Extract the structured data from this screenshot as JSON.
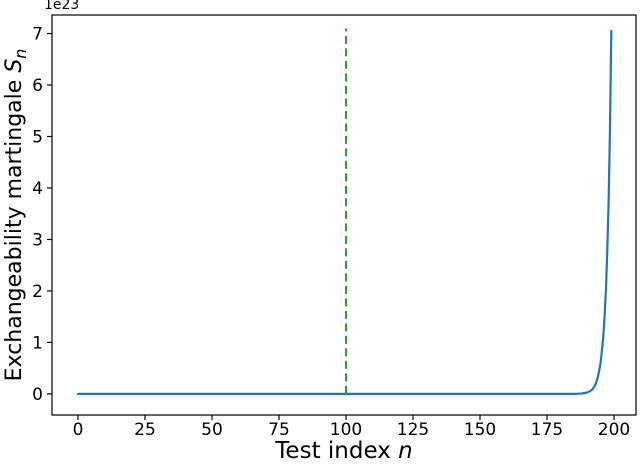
{
  "figure": {
    "background": "#ffffff",
    "offset_text": "1e23",
    "xlabel_prefix": "Test index ",
    "xlabel_var": "n",
    "ylabel_prefix": "Exchangeability martingale ",
    "ylabel_var": "S",
    "ylabel_sub": "n"
  },
  "chart_data": {
    "type": "line",
    "title": "",
    "xlabel": "Test index n",
    "ylabel": "Exchangeability martingale S_n",
    "y_offset_text": "1e23",
    "y_unit_multiplier": 1e+23,
    "xlim": [
      -9.7,
      208.2
    ],
    "ylim": [
      -0.41,
      7.36
    ],
    "x_ticks": [
      0,
      25,
      50,
      75,
      100,
      125,
      150,
      175,
      200
    ],
    "y_ticks": [
      0,
      1,
      2,
      3,
      4,
      5,
      6,
      7
    ],
    "grid": false,
    "legend": false,
    "spine_color": "#000000",
    "series": [
      {
        "name": "exchangeability_martingale",
        "color": "#1f77b4",
        "style": "solid",
        "line_width": 2.2,
        "points": [
          [
            0,
            0
          ],
          [
            25,
            0
          ],
          [
            50,
            0
          ],
          [
            75,
            0
          ],
          [
            100,
            0
          ],
          [
            125,
            0
          ],
          [
            150,
            0
          ],
          [
            175,
            0
          ],
          [
            180,
            0.0001
          ],
          [
            184,
            0.0007
          ],
          [
            186,
            0.0023
          ],
          [
            188,
            0.008
          ],
          [
            190,
            0.028
          ],
          [
            191,
            0.051
          ],
          [
            192,
            0.094
          ],
          [
            193,
            0.175
          ],
          [
            194,
            0.324
          ],
          [
            195,
            0.6
          ],
          [
            196,
            1.109
          ],
          [
            196.5,
            1.511
          ],
          [
            197,
            2.053
          ],
          [
            197.5,
            2.79
          ],
          [
            198,
            3.8
          ],
          [
            198.5,
            5.17
          ],
          [
            199,
            7.05
          ]
        ]
      }
    ],
    "vlines": [
      {
        "x": 100,
        "y_from": 0,
        "y_to": 7.1,
        "color": "#2ca02c",
        "style": "dashed",
        "line_width": 2
      }
    ]
  }
}
